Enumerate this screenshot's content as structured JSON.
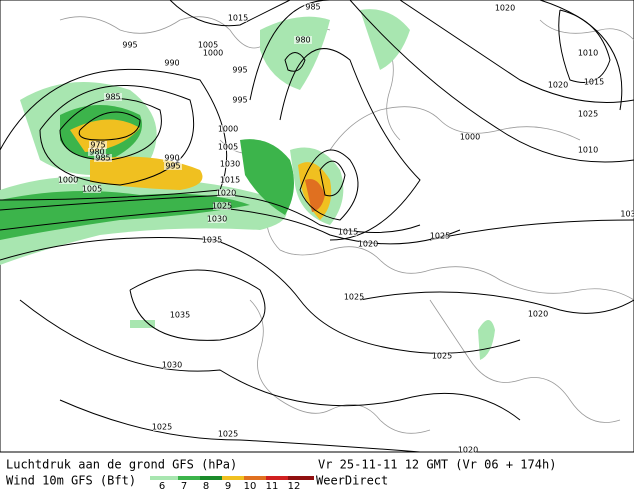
{
  "map": {
    "isobar_labels": [
      "1015",
      "985",
      "1020",
      "995",
      "1005",
      "1000",
      "980",
      "990",
      "995",
      "1010",
      "1015",
      "1020",
      "985",
      "995",
      "1025",
      "1000",
      "1000",
      "975",
      "980",
      "985",
      "990",
      "995",
      "1005",
      "1010",
      "1030",
      "1015",
      "1000",
      "1005",
      "1020",
      "1025",
      "1030",
      "1035",
      "1015",
      "1020",
      "1025",
      "1025",
      "1035",
      "1020",
      "1030",
      "1025",
      "1025",
      "1025",
      "1020",
      "103"
    ]
  },
  "legend": {
    "pressure_label": "Luchtdruk aan de grond GFS (hPa)",
    "valid_time": "Vr 25-11-11 12 GMT (Vr 06 + 174h)",
    "wind_label": "Wind 10m GFS (Bft)",
    "wind_scale": [
      "6",
      "7",
      "8",
      "9",
      "10",
      "11",
      "12"
    ],
    "brand": "WeerDirect"
  }
}
